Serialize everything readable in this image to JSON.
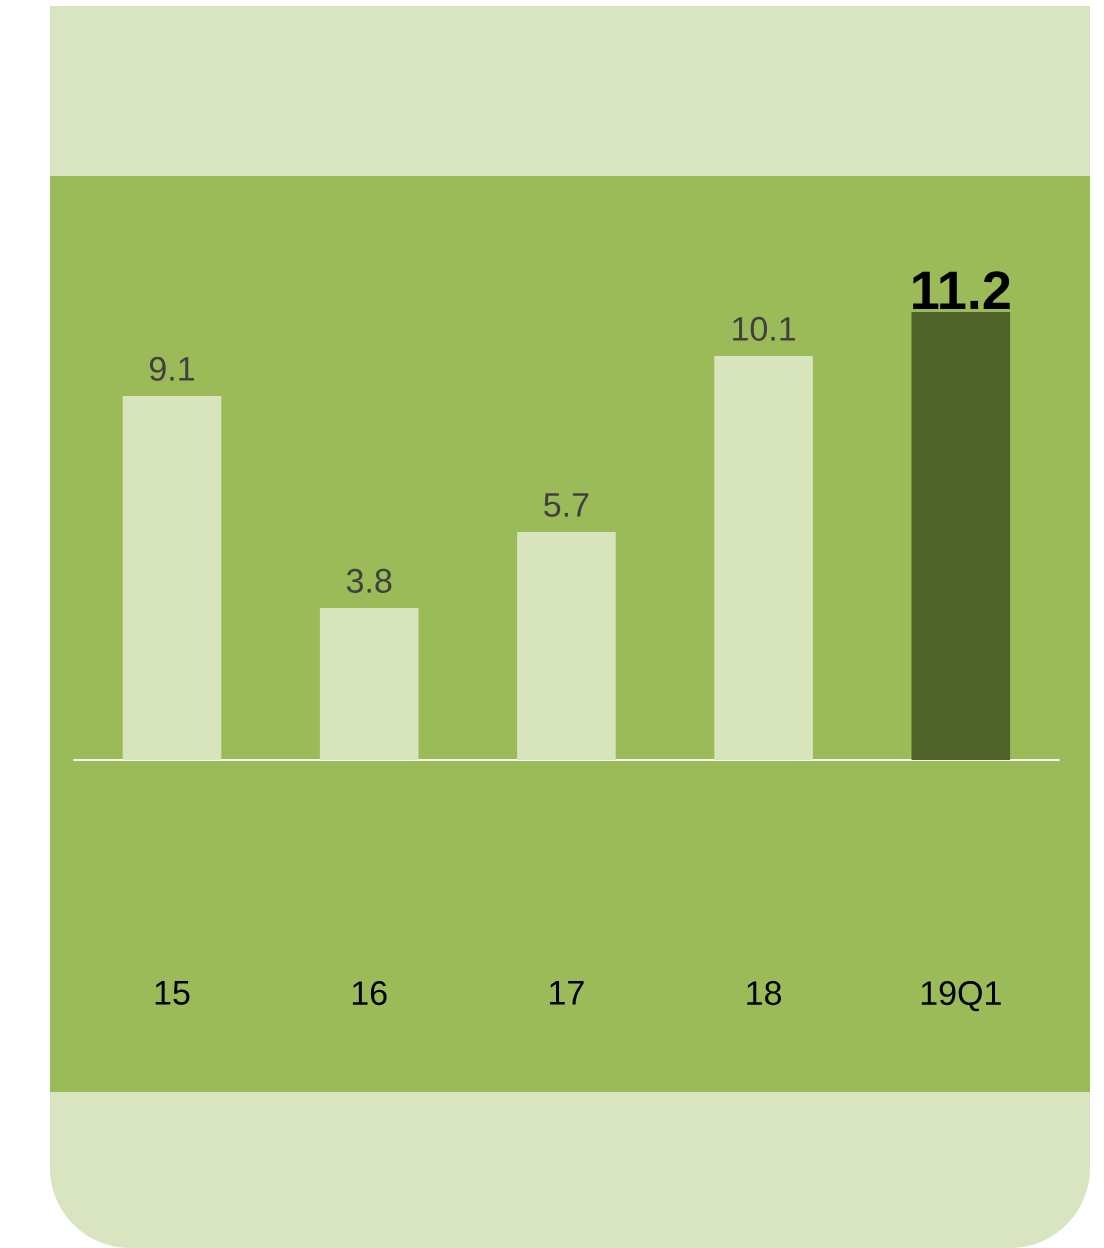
{
  "chart_data": {
    "type": "bar",
    "categories": [
      "15",
      "16",
      "17",
      "18",
      "19Q1"
    ],
    "values": [
      9.1,
      3.8,
      5.7,
      10.1,
      11.2
    ],
    "colors": [
      "#d8e4bc",
      "#d8e4bc",
      "#d8e4bc",
      "#d8e4bc",
      "#4f6228"
    ],
    "data_labels": true
  }
}
